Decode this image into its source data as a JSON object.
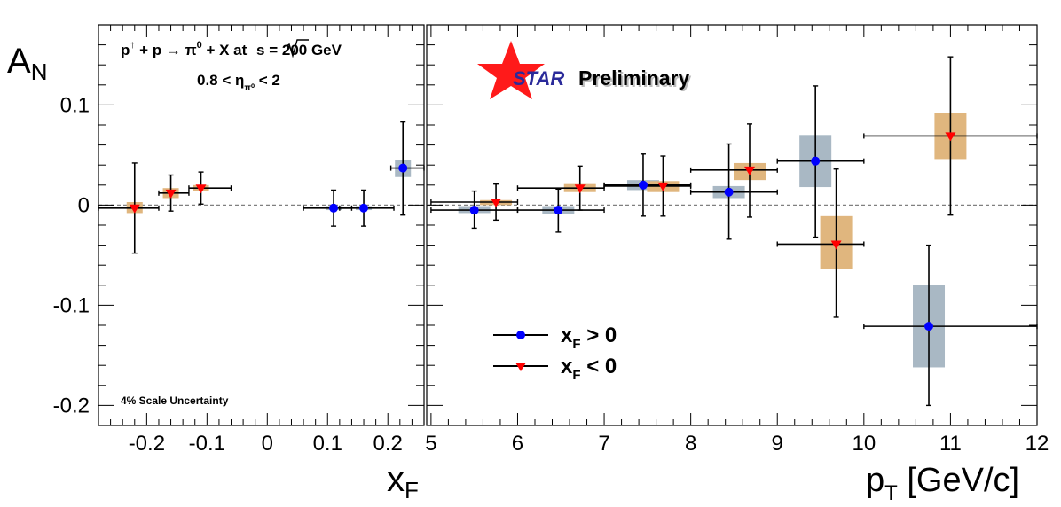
{
  "chart_data": {
    "type": "scatter",
    "ylabel": "A",
    "ylabel_sub": "N",
    "ylim": [
      -0.22,
      0.18
    ],
    "yticks": [
      -0.2,
      -0.1,
      0,
      0.1
    ],
    "ytick_labels": [
      "-0.2",
      "-0.1",
      "0",
      "0.1"
    ],
    "annotation": {
      "reaction": [
        "p",
        "↑",
        " + p → π",
        "0",
        " + X at ",
        "s",
        " = 200 GeV"
      ],
      "eta": [
        "0.8 < η",
        "π⁰",
        " < 2"
      ],
      "scale_note": "4% Scale Uncertainty",
      "star_text": "STAR",
      "preliminary_text": "Preliminary"
    },
    "legend": {
      "position": "bottom-center of right panel",
      "entries": [
        {
          "main": "x",
          "sub": "F",
          "rest": " > 0",
          "marker": "circle",
          "color": "#0000ff"
        },
        {
          "main": "x",
          "sub": "F",
          "rest": " < 0",
          "marker": "triangle-down",
          "color": "#ff0000"
        }
      ]
    },
    "colors": {
      "pos_marker": "#0000ff",
      "neg_marker": "#ff0000",
      "pos_syst": "#a9b8c4",
      "neg_syst": "#e0b67e"
    },
    "panels": [
      {
        "name": "xF",
        "xlabel": "x",
        "xlabel_sub": "F",
        "xlim": [
          -0.28,
          0.26
        ],
        "xticks": [
          -0.2,
          -0.1,
          0,
          0.1,
          0.2
        ],
        "xtick_labels": [
          "-0.2",
          "-0.1",
          "0",
          "0.1",
          "0.2"
        ],
        "series": [
          {
            "label": "xF > 0",
            "marker": "circle",
            "points": [
              {
                "x": 0.11,
                "y": -0.003,
                "xlo": 0.06,
                "xhi": 0.14,
                "ylo": -0.021,
                "yhi": 0.015,
                "syslo": -0.005,
                "syshi": -0.001
              },
              {
                "x": 0.16,
                "y": -0.003,
                "xlo": 0.12,
                "xhi": 0.21,
                "ylo": -0.021,
                "yhi": 0.015,
                "syslo": -0.005,
                "syshi": -0.001
              },
              {
                "x": 0.225,
                "y": 0.037,
                "xlo": 0.205,
                "xhi": 0.26,
                "ylo": -0.01,
                "yhi": 0.083,
                "syslo": 0.028,
                "syshi": 0.045
              }
            ]
          },
          {
            "label": "xF < 0",
            "marker": "triangle-down",
            "points": [
              {
                "x": -0.22,
                "y": -0.003,
                "xlo": -0.28,
                "xhi": -0.18,
                "ylo": -0.048,
                "yhi": 0.042,
                "syslo": -0.008,
                "syshi": 0.003
              },
              {
                "x": -0.16,
                "y": 0.012,
                "xlo": -0.18,
                "xhi": -0.13,
                "ylo": -0.006,
                "yhi": 0.03,
                "syslo": 0.007,
                "syshi": 0.017
              },
              {
                "x": -0.11,
                "y": 0.017,
                "xlo": -0.13,
                "xhi": -0.06,
                "ylo": 0.001,
                "yhi": 0.033,
                "syslo": 0.014,
                "syshi": 0.02
              }
            ]
          }
        ]
      },
      {
        "name": "pT",
        "xlabel": "p",
        "xlabel_sub": "T",
        "xlabel_rest": " [GeV/c]",
        "xlim": [
          4.95,
          12.0
        ],
        "xticks": [
          5,
          6,
          7,
          8,
          9,
          10,
          11,
          12
        ],
        "xtick_labels": [
          "5",
          "6",
          "7",
          "8",
          "9",
          "10",
          "11",
          "12"
        ],
        "series": [
          {
            "label": "xF > 0",
            "marker": "circle",
            "points": [
              {
                "x": 5.5,
                "y": -0.005,
                "xlo": 5.0,
                "xhi": 6.0,
                "ylo": -0.023,
                "yhi": 0.014,
                "syslo": -0.008,
                "syshi": -0.001
              },
              {
                "x": 6.47,
                "y": -0.005,
                "xlo": 6.0,
                "xhi": 7.0,
                "ylo": -0.027,
                "yhi": 0.016,
                "syslo": -0.009,
                "syshi": -0.001
              },
              {
                "x": 7.45,
                "y": 0.02,
                "xlo": 7.0,
                "xhi": 8.0,
                "ylo": -0.011,
                "yhi": 0.051,
                "syslo": 0.015,
                "syshi": 0.025
              },
              {
                "x": 8.44,
                "y": 0.013,
                "xlo": 8.0,
                "xhi": 9.0,
                "ylo": -0.034,
                "yhi": 0.061,
                "syslo": 0.007,
                "syshi": 0.019
              },
              {
                "x": 9.44,
                "y": 0.044,
                "xlo": 9.0,
                "xhi": 10.0,
                "ylo": -0.032,
                "yhi": 0.119,
                "syslo": 0.018,
                "syshi": 0.07
              },
              {
                "x": 10.75,
                "y": -0.121,
                "xlo": 10.0,
                "xhi": 12.0,
                "ylo": -0.2,
                "yhi": -0.04,
                "syslo": -0.162,
                "syshi": -0.08
              }
            ]
          },
          {
            "label": "xF < 0",
            "marker": "triangle-down",
            "points": [
              {
                "x": 5.75,
                "y": 0.003,
                "xlo": 5.0,
                "xhi": 6.0,
                "ylo": -0.015,
                "yhi": 0.021,
                "syslo": 0.0,
                "syshi": 0.005
              },
              {
                "x": 6.72,
                "y": 0.017,
                "xlo": 6.0,
                "xhi": 7.0,
                "ylo": -0.005,
                "yhi": 0.039,
                "syslo": 0.013,
                "syshi": 0.021
              },
              {
                "x": 7.68,
                "y": 0.019,
                "xlo": 7.0,
                "xhi": 8.0,
                "ylo": -0.011,
                "yhi": 0.049,
                "syslo": 0.013,
                "syshi": 0.024
              },
              {
                "x": 8.68,
                "y": 0.035,
                "xlo": 8.0,
                "xhi": 9.0,
                "ylo": -0.012,
                "yhi": 0.081,
                "syslo": 0.025,
                "syshi": 0.042
              },
              {
                "x": 9.68,
                "y": -0.039,
                "xlo": 9.0,
                "xhi": 10.0,
                "ylo": -0.112,
                "yhi": 0.036,
                "syslo": -0.064,
                "syshi": -0.011
              },
              {
                "x": 11.0,
                "y": 0.069,
                "xlo": 10.0,
                "xhi": 12.0,
                "ylo": -0.01,
                "yhi": 0.148,
                "syslo": 0.046,
                "syshi": 0.092
              }
            ]
          }
        ]
      }
    ]
  }
}
